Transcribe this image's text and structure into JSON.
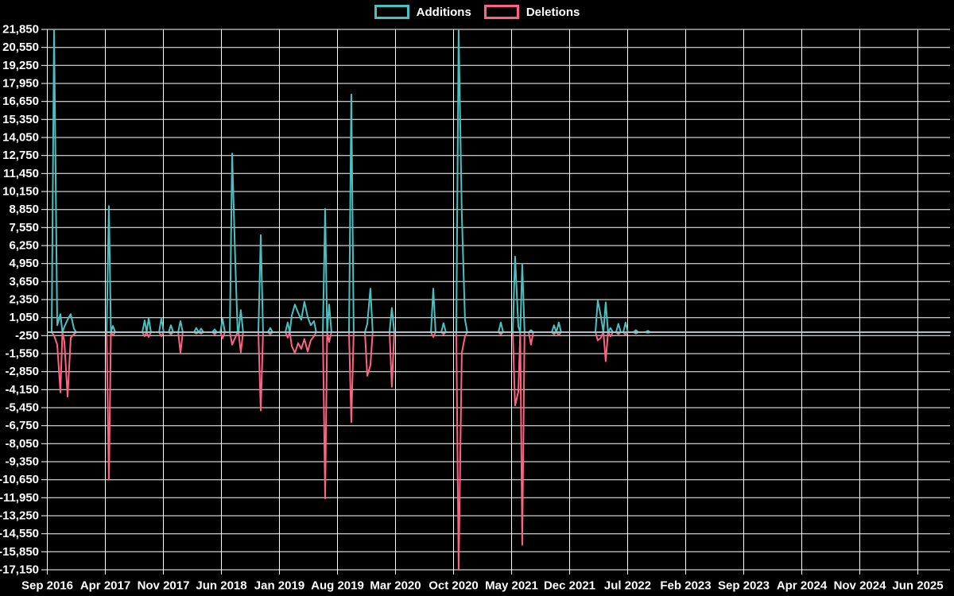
{
  "legend": {
    "items": [
      {
        "label": "Additions"
      },
      {
        "label": "Deletions"
      }
    ]
  },
  "colors": {
    "background": "#000000",
    "grid": "#ffffff",
    "text": "#ffffff",
    "additions": "#4bc0c0",
    "deletions": "#ff6384",
    "zero_line": "#a9c0c7"
  },
  "chart_data": {
    "type": "line",
    "title": "",
    "legend_entries": [
      "Additions",
      "Deletions"
    ],
    "legend_position": "top-center",
    "grid": true,
    "x_axis": {
      "tick_labels": [
        "Sep 2016",
        "Apr 2017",
        "Nov 2017",
        "Jun 2018",
        "Jan 2019",
        "Aug 2019",
        "Mar 2020",
        "Oct 2020",
        "May 2021",
        "Dec 2021",
        "Jul 2022",
        "Feb 2023",
        "Sep 2023",
        "Apr 2024",
        "Nov 2024",
        "Jun 2025"
      ],
      "months_between_ticks": 7
    },
    "y_axis": {
      "max": 21850,
      "min": -17150,
      "step": 1300,
      "tick_labels": [
        "21,850",
        "20,550",
        "19,250",
        "17,950",
        "16,650",
        "15,350",
        "14,050",
        "12,750",
        "11,450",
        "10,150",
        "8,850",
        "7,550",
        "6,250",
        "4,950",
        "3,650",
        "2,350",
        "1,050",
        "-250",
        "-1,550",
        "-2,850",
        "-4,150",
        "-5,450",
        "-6,750",
        "-8,050",
        "-9,350",
        "-10,650",
        "-11,950",
        "-13,250",
        "-14,550",
        "-15,850",
        "-17,150"
      ]
    },
    "series": [
      {
        "name": "Additions",
        "color": "#4bc0c0",
        "points_index": 1
      },
      {
        "name": "Deletions",
        "color": "#ff6384",
        "points_index": 2
      }
    ],
    "x_unit": "months_after_Sep_2016",
    "points_format": "[x_months, additions, deletions]; weeks not listed are 0/0; line is flat 0 through Jun 2025",
    "points": [
      [
        0.86,
        21850,
        -250
      ],
      [
        1.25,
        500,
        -900
      ],
      [
        1.63,
        1300,
        -4350
      ],
      [
        2.11,
        400,
        -700
      ],
      [
        2.49,
        900,
        -4650
      ],
      [
        2.88,
        1300,
        -400
      ],
      [
        3.26,
        250,
        -150
      ],
      [
        7.48,
        9100,
        -10650
      ],
      [
        7.96,
        450,
        -250
      ],
      [
        11.79,
        850,
        -300
      ],
      [
        12.27,
        1000,
        -350
      ],
      [
        13.81,
        1000,
        -300
      ],
      [
        14.96,
        500,
        -150
      ],
      [
        16.11,
        800,
        -1500
      ],
      [
        18.02,
        300,
        -100
      ],
      [
        18.6,
        250,
        -100
      ],
      [
        20.23,
        200,
        -150
      ],
      [
        21.19,
        950,
        -450
      ],
      [
        22.34,
        12900,
        -900
      ],
      [
        22.72,
        5200,
        -400
      ],
      [
        23.39,
        1600,
        -1450
      ],
      [
        25.79,
        7000,
        -5650
      ],
      [
        26.94,
        300,
        -150
      ],
      [
        29.05,
        700,
        -400
      ],
      [
        29.53,
        1200,
        -1000
      ],
      [
        29.91,
        2000,
        -1500
      ],
      [
        30.3,
        1400,
        -800
      ],
      [
        30.68,
        900,
        -1200
      ],
      [
        31.06,
        2200,
        -500
      ],
      [
        31.45,
        1100,
        -1400
      ],
      [
        31.83,
        500,
        -600
      ],
      [
        32.21,
        800,
        -300
      ],
      [
        33.56,
        8900,
        -12000
      ],
      [
        34.04,
        2000,
        -700
      ],
      [
        36.72,
        17150,
        -6500
      ],
      [
        38.64,
        600,
        -3150
      ],
      [
        39.02,
        3150,
        -2400
      ],
      [
        41.61,
        1750,
        -3950
      ],
      [
        46.6,
        3150,
        -350
      ],
      [
        47.84,
        650,
        -150
      ],
      [
        49.66,
        21800,
        -17100
      ],
      [
        50.05,
        8500,
        -1500
      ],
      [
        50.43,
        900,
        -300
      ],
      [
        54.75,
        700,
        -150
      ],
      [
        56.47,
        5450,
        -5300
      ],
      [
        56.86,
        400,
        -4300
      ],
      [
        57.33,
        4900,
        -15350
      ],
      [
        58.39,
        150,
        -900
      ],
      [
        61.17,
        500,
        -150
      ],
      [
        61.74,
        700,
        -200
      ],
      [
        66.44,
        2300,
        -600
      ],
      [
        66.83,
        1100,
        -400
      ],
      [
        67.4,
        2150,
        -2100
      ],
      [
        67.98,
        300,
        -300
      ],
      [
        68.93,
        600,
        -150
      ],
      [
        69.8,
        700,
        -200
      ],
      [
        71.04,
        150,
        -100
      ],
      [
        72.48,
        100,
        -50
      ]
    ]
  }
}
